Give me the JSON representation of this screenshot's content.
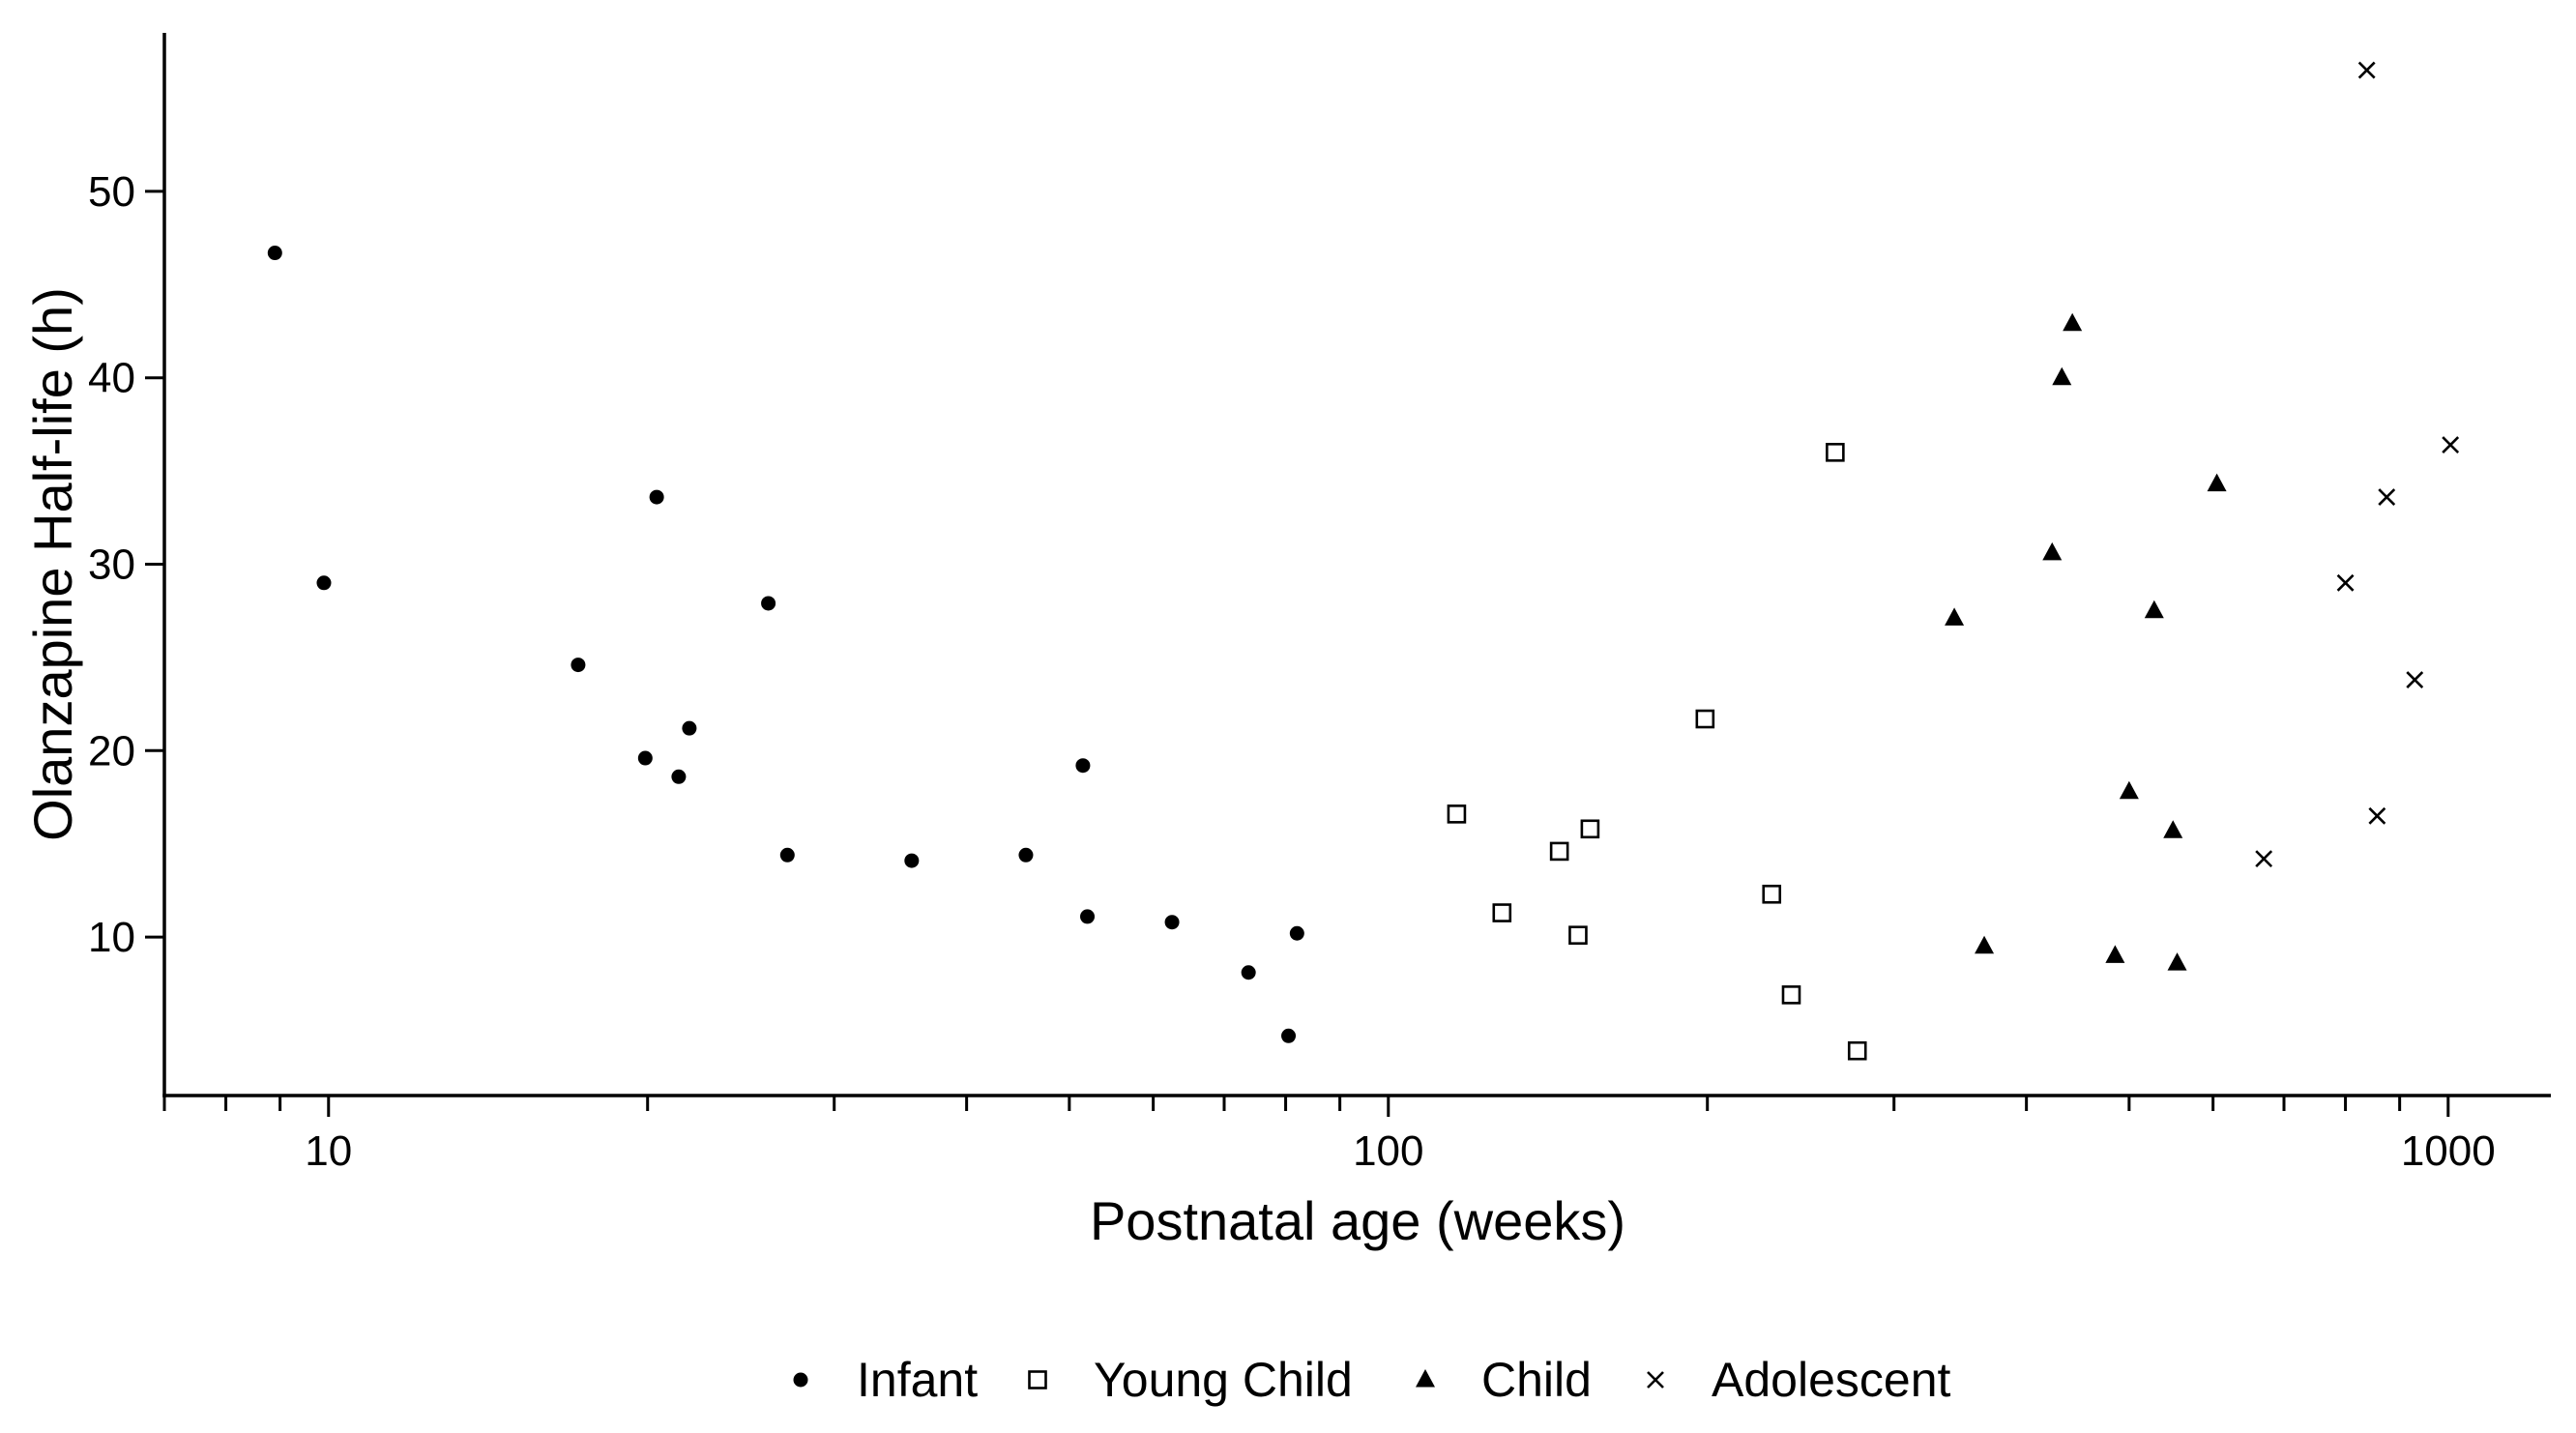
{
  "chart_data": {
    "type": "scatter",
    "title": "",
    "xlabel": "Postnatal age (weeks)",
    "ylabel": "Olanzapine Half-life (h)",
    "x_scale": "log",
    "xlim": [
      7,
      1250
    ],
    "ylim": [
      1.5,
      58.5
    ],
    "x_ticks": [
      10,
      100,
      1000
    ],
    "x_tick_labels": [
      "10",
      "100",
      "1000"
    ],
    "y_ticks": [
      10,
      20,
      30,
      40,
      50
    ],
    "y_tick_labels": [
      "10",
      "20",
      "30",
      "40",
      "50"
    ],
    "grid": false,
    "legend_position": "bottom",
    "colors": {
      "marker": "#000000",
      "axis": "#000000",
      "background": "#ffffff"
    },
    "series": [
      {
        "name": "Infant",
        "marker": "filled-circle",
        "points": [
          [
            8.9,
            46.7
          ],
          [
            9.9,
            29.0
          ],
          [
            17.2,
            24.6
          ],
          [
            19.9,
            19.6
          ],
          [
            20.4,
            33.6
          ],
          [
            21.4,
            18.6
          ],
          [
            21.9,
            21.2
          ],
          [
            26.0,
            27.9
          ],
          [
            27.1,
            14.4
          ],
          [
            35.5,
            14.1
          ],
          [
            45.5,
            14.4
          ],
          [
            51.5,
            19.2
          ],
          [
            52.0,
            11.1
          ],
          [
            62.5,
            10.8
          ],
          [
            73.8,
            8.1
          ],
          [
            80.5,
            4.7
          ],
          [
            82.0,
            10.2
          ]
        ]
      },
      {
        "name": "Young Child",
        "marker": "open-square",
        "points": [
          [
            116,
            16.6
          ],
          [
            128,
            11.3
          ],
          [
            145,
            14.6
          ],
          [
            151,
            10.1
          ],
          [
            155,
            15.8
          ],
          [
            199,
            21.7
          ],
          [
            230,
            12.3
          ],
          [
            240,
            6.9
          ],
          [
            264,
            36.0
          ],
          [
            277,
            3.9
          ]
        ]
      },
      {
        "name": "Child",
        "marker": "filled-triangle",
        "points": [
          [
            342,
            27.1
          ],
          [
            365,
            9.5
          ],
          [
            423,
            30.6
          ],
          [
            432,
            40.0
          ],
          [
            442,
            42.9
          ],
          [
            485,
            9.0
          ],
          [
            500,
            17.8
          ],
          [
            528,
            27.5
          ],
          [
            550,
            15.7
          ],
          [
            555,
            8.6
          ],
          [
            605,
            34.3
          ]
        ]
      },
      {
        "name": "Adolescent",
        "marker": "cross",
        "points": [
          [
            670,
            14.2
          ],
          [
            800,
            29.0
          ],
          [
            838,
            56.5
          ],
          [
            857,
            16.5
          ],
          [
            875,
            33.6
          ],
          [
            930,
            23.8
          ],
          [
            1005,
            36.4
          ]
        ]
      }
    ]
  }
}
